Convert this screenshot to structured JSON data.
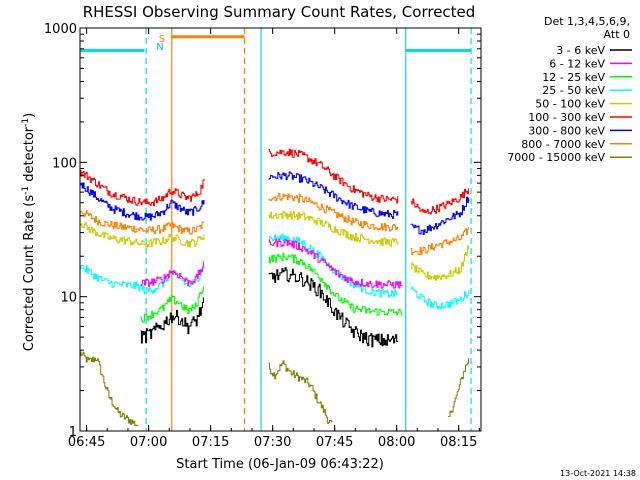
{
  "chart_data": {
    "type": "line",
    "title": "RHESSI Observing Summary Count Rates, Corrected",
    "xlabel": "Start Time (06-Jan-09 06:43:22)",
    "ylabel_main": "Corrected Count Rate (s",
    "ylabel_sup1": "-1",
    "ylabel_mid": " detector",
    "ylabel_sup2": "-1",
    "ylabel_end": ")",
    "y_scale": "log",
    "ylim": [
      1,
      1000
    ],
    "xlim_minutes": [
      0,
      97
    ],
    "x_ticks": [
      {
        "label": "06:45",
        "minutes": 1.6
      },
      {
        "label": "07:00",
        "minutes": 16.6
      },
      {
        "label": "07:15",
        "minutes": 31.6
      },
      {
        "label": "07:30",
        "minutes": 46.6
      },
      {
        "label": "07:45",
        "minutes": 61.6
      },
      {
        "label": "08:00",
        "minutes": 76.6
      },
      {
        "label": "08:15",
        "minutes": 91.6
      }
    ],
    "y_ticks": [
      {
        "label": "1",
        "value": 1
      },
      {
        "label": "10",
        "value": 10
      },
      {
        "label": "100",
        "value": 100
      },
      {
        "label": "1000",
        "value": 1000
      }
    ],
    "legend_header_1": "Det 1,3,4,5,6,9,",
    "legend_header_2": "Att 0",
    "legend_placement": "right",
    "footer_date": "13-Oct-2021 14:38",
    "flag_labels": {
      "saa": "S",
      "night": "N"
    },
    "series": [
      {
        "name": "3 - 6 keV",
        "color": "#000000",
        "seg1": [
          [
            14.6,
            5.0
          ],
          [
            17,
            5.3
          ],
          [
            20,
            6.2
          ],
          [
            22,
            7.2
          ],
          [
            24,
            7.0
          ],
          [
            26,
            6.0
          ],
          [
            28,
            6.6
          ],
          [
            29,
            7.8
          ],
          [
            30,
            9.0
          ]
        ],
        "seg2": [
          [
            45.6,
            14
          ],
          [
            50,
            14.8
          ],
          [
            54,
            13.5
          ],
          [
            58,
            11
          ],
          [
            62,
            7.5
          ],
          [
            66,
            5.5
          ],
          [
            70,
            4.8
          ],
          [
            74,
            4.7
          ],
          [
            77,
            4.8
          ]
        ]
      },
      {
        "name": "6 - 12 keV",
        "color": "#ff00ff",
        "seg1": [
          [
            14.6,
            12.5
          ],
          [
            17,
            12.8
          ],
          [
            20,
            13.5
          ],
          [
            22,
            15.5
          ],
          [
            24,
            14.5
          ],
          [
            26,
            12.8
          ],
          [
            28,
            13.5
          ],
          [
            29,
            15.5
          ],
          [
            30,
            17.5
          ]
        ],
        "seg2": [
          [
            45.6,
            25
          ],
          [
            50,
            25.5
          ],
          [
            54,
            23
          ],
          [
            58,
            19
          ],
          [
            62,
            15
          ],
          [
            66,
            13
          ],
          [
            70,
            12.5
          ],
          [
            74,
            12.3
          ],
          [
            78,
            12.3
          ]
        ]
      },
      {
        "name": "12 - 25 keV",
        "color": "#00ff00",
        "seg1": [
          [
            14.6,
            6.8
          ],
          [
            17,
            7.3
          ],
          [
            20,
            8.2
          ],
          [
            22,
            9.6
          ],
          [
            24,
            9.0
          ],
          [
            26,
            7.8
          ],
          [
            28,
            8.5
          ],
          [
            29,
            10.5
          ],
          [
            30,
            12.5
          ]
        ],
        "seg2": [
          [
            45.6,
            19
          ],
          [
            50,
            20
          ],
          [
            54,
            18
          ],
          [
            58,
            14
          ],
          [
            62,
            10
          ],
          [
            66,
            8.2
          ],
          [
            70,
            7.8
          ],
          [
            74,
            7.7
          ],
          [
            78,
            7.6
          ]
        ]
      },
      {
        "name": "25 - 50 keV",
        "color": "#00ffff",
        "seg1": [
          [
            0,
            17
          ],
          [
            2,
            15.5
          ],
          [
            4,
            14
          ],
          [
            6,
            13
          ],
          [
            8,
            12.5
          ],
          [
            10,
            12.3
          ],
          [
            12,
            12.1
          ],
          [
            14,
            12
          ],
          [
            16,
            11
          ],
          [
            18,
            11.5
          ],
          [
            20,
            12.5
          ],
          [
            22,
            15
          ],
          [
            24,
            14
          ],
          [
            26,
            12
          ],
          [
            28,
            13
          ],
          [
            29,
            15
          ],
          [
            30,
            17.5
          ]
        ],
        "seg2": [
          [
            45.6,
            27
          ],
          [
            50,
            27.5
          ],
          [
            54,
            25
          ],
          [
            58,
            20
          ],
          [
            62,
            15
          ],
          [
            66,
            12.5
          ],
          [
            70,
            11
          ],
          [
            74,
            10.5
          ],
          [
            77,
            10.5
          ]
        ],
        "seg3": [
          [
            80,
            11.5
          ],
          [
            83,
            9.5
          ],
          [
            86,
            8.5
          ],
          [
            89,
            8.8
          ],
          [
            92,
            9.5
          ],
          [
            94,
            11
          ]
        ]
      },
      {
        "name": "50 - 100 keV",
        "color": "#cccc00",
        "seg1": [
          [
            0,
            36
          ],
          [
            2,
            32
          ],
          [
            4,
            30
          ],
          [
            6,
            28
          ],
          [
            8,
            27
          ],
          [
            10,
            26.5
          ],
          [
            12,
            26
          ],
          [
            14,
            25
          ],
          [
            16,
            24.5
          ],
          [
            18,
            25.5
          ],
          [
            20,
            26
          ],
          [
            22,
            28
          ],
          [
            24,
            26.5
          ],
          [
            26,
            25
          ],
          [
            28,
            25.5
          ],
          [
            29,
            27
          ],
          [
            30,
            29
          ]
        ],
        "seg2": [
          [
            45.6,
            40
          ],
          [
            50,
            41
          ],
          [
            54,
            39.5
          ],
          [
            58,
            36
          ],
          [
            62,
            31.5
          ],
          [
            66,
            28
          ],
          [
            70,
            26.5
          ],
          [
            74,
            25.5
          ],
          [
            77,
            25.5
          ]
        ],
        "seg3": [
          [
            80,
            17
          ],
          [
            83,
            14.5
          ],
          [
            86,
            14
          ],
          [
            89,
            14.5
          ],
          [
            92,
            16
          ],
          [
            94,
            24
          ]
        ]
      },
      {
        "name": "100 - 300 keV",
        "color": "#ff0000",
        "seg1": [
          [
            0,
            85
          ],
          [
            2,
            78
          ],
          [
            4,
            70
          ],
          [
            6,
            63
          ],
          [
            8,
            58
          ],
          [
            10,
            56
          ],
          [
            12,
            53
          ],
          [
            14,
            51
          ],
          [
            16,
            50
          ],
          [
            18,
            51
          ],
          [
            20,
            54
          ],
          [
            22,
            62
          ],
          [
            24,
            58
          ],
          [
            26,
            54
          ],
          [
            28,
            57
          ],
          [
            29,
            62
          ],
          [
            30,
            74
          ]
        ],
        "seg2": [
          [
            45.6,
            118
          ],
          [
            50,
            120
          ],
          [
            54,
            112
          ],
          [
            58,
            96
          ],
          [
            62,
            77
          ],
          [
            66,
            63
          ],
          [
            70,
            56
          ],
          [
            74,
            53
          ],
          [
            77,
            53
          ]
        ],
        "seg3": [
          [
            80,
            52
          ],
          [
            83,
            42
          ],
          [
            86,
            45
          ],
          [
            89,
            49
          ],
          [
            92,
            55
          ],
          [
            94,
            64
          ]
        ]
      },
      {
        "name": "300 - 800 keV",
        "color": "#0000ff",
        "seg1": [
          [
            0,
            70
          ],
          [
            2,
            62
          ],
          [
            4,
            55
          ],
          [
            6,
            49
          ],
          [
            8,
            45
          ],
          [
            10,
            43
          ],
          [
            12,
            41
          ],
          [
            14,
            40
          ],
          [
            16,
            39
          ],
          [
            18,
            40
          ],
          [
            20,
            43
          ],
          [
            22,
            50
          ],
          [
            24,
            46
          ],
          [
            26,
            42
          ],
          [
            28,
            44
          ],
          [
            29,
            47
          ],
          [
            30,
            51
          ]
        ],
        "seg2": [
          [
            45.6,
            78
          ],
          [
            50,
            80
          ],
          [
            54,
            75
          ],
          [
            58,
            65
          ],
          [
            62,
            55
          ],
          [
            66,
            47
          ],
          [
            70,
            43
          ],
          [
            74,
            41
          ],
          [
            77,
            41
          ]
        ],
        "seg3": [
          [
            80,
            33
          ],
          [
            83,
            31
          ],
          [
            86,
            34
          ],
          [
            89,
            38
          ],
          [
            92,
            42
          ],
          [
            94,
            56
          ]
        ]
      },
      {
        "name": "800 - 7000 keV",
        "color": "#ff8000",
        "seg1": [
          [
            0,
            44
          ],
          [
            2,
            40
          ],
          [
            4,
            37
          ],
          [
            6,
            35
          ],
          [
            8,
            34
          ],
          [
            10,
            33
          ],
          [
            12,
            32.5
          ],
          [
            14,
            32
          ],
          [
            16,
            31
          ],
          [
            18,
            31.5
          ],
          [
            20,
            32
          ],
          [
            22,
            34
          ],
          [
            24,
            32
          ],
          [
            26,
            30.5
          ],
          [
            28,
            31.5
          ],
          [
            29,
            33
          ],
          [
            30,
            35
          ]
        ],
        "seg2": [
          [
            45.6,
            55
          ],
          [
            50,
            56
          ],
          [
            54,
            53
          ],
          [
            58,
            47
          ],
          [
            62,
            41
          ],
          [
            66,
            36
          ],
          [
            70,
            34
          ],
          [
            74,
            33
          ],
          [
            77,
            33
          ]
        ],
        "seg3": [
          [
            80,
            22
          ],
          [
            83,
            22
          ],
          [
            86,
            24
          ],
          [
            89,
            25.5
          ],
          [
            92,
            27
          ],
          [
            94,
            32
          ]
        ]
      },
      {
        "name": "7000 - 15000 keV",
        "color": "#808000",
        "seg1": [
          [
            0,
            3.8
          ],
          [
            2,
            3.3
          ],
          [
            4,
            3.5
          ],
          [
            5,
            2.8
          ],
          [
            6,
            2.2
          ],
          [
            7,
            1.8
          ],
          [
            8,
            1.6
          ],
          [
            9,
            1.4
          ],
          [
            10,
            1.3
          ],
          [
            12,
            1.2
          ],
          [
            13,
            1.15
          ],
          [
            14,
            1.1
          ]
        ],
        "seg2": [
          [
            45.6,
            3.0
          ],
          [
            47,
            2.6
          ],
          [
            49,
            3.2
          ],
          [
            51,
            2.7
          ],
          [
            53,
            2.5
          ],
          [
            55,
            2.3
          ],
          [
            56,
            2.1
          ],
          [
            57,
            1.8
          ],
          [
            58,
            1.6
          ],
          [
            59,
            1.4
          ],
          [
            60,
            1.2
          ],
          [
            61,
            1.1
          ]
        ],
        "seg3": [
          [
            89,
            1.2
          ],
          [
            90,
            1.5
          ],
          [
            91,
            1.8
          ],
          [
            92,
            2.3
          ],
          [
            93,
            2.9
          ],
          [
            94,
            3.4
          ]
        ]
      }
    ],
    "flag_lines": [
      {
        "kind": "saa",
        "color": "#00e0e0",
        "y_value": 680,
        "start": 0,
        "end": 15.6
      },
      {
        "kind": "saa",
        "color": "#00e0e0",
        "y_value": 680,
        "start": 78.8,
        "end": 94.6
      },
      {
        "kind": "night",
        "color": "#ff8000",
        "y_value": 860,
        "start": 22.2,
        "end": 39.8
      }
    ],
    "vertical_markers": [
      {
        "minutes": 16.0,
        "color": "#00e0e0",
        "style": "dashed"
      },
      {
        "minutes": 22.2,
        "color": "#ff8000",
        "style": "solid"
      },
      {
        "minutes": 39.8,
        "color": "#ff8000",
        "style": "dashed"
      },
      {
        "minutes": 43.8,
        "color": "#00e0e0",
        "style": "solid"
      },
      {
        "minutes": 78.8,
        "color": "#00e0e0",
        "style": "solid"
      },
      {
        "minutes": 94.6,
        "color": "#00e0e0",
        "style": "dashed"
      }
    ]
  }
}
